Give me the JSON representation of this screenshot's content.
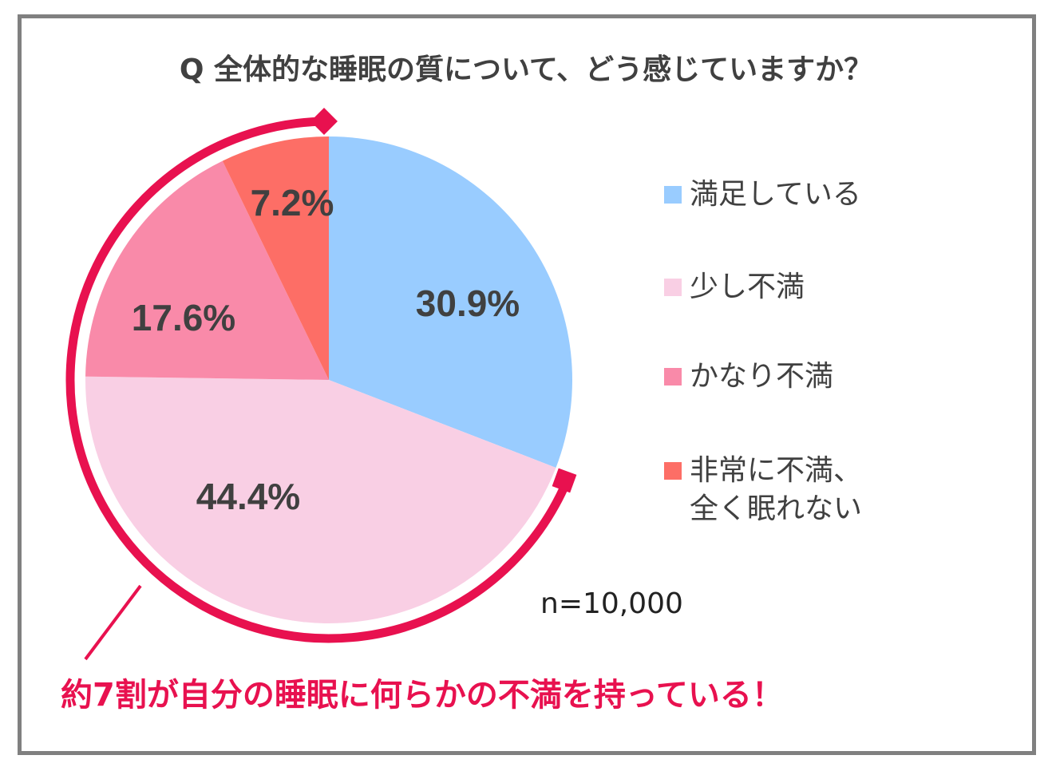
{
  "title": "Q 全体的な睡眠の質について、どう感じていますか？",
  "sample_size": "n=10,000",
  "callout": "約7割が自分の睡眠に何らかの不満を持っている！",
  "colors": {
    "satisfied": "#99ccff",
    "slightly": "#f9cfe4",
    "quite": "#f98aa9",
    "very": "#fd6e66",
    "accent": "#e8114f",
    "frame": "#808080",
    "text": "#404040"
  },
  "legend": [
    {
      "label": "満足している",
      "color": "#99ccff"
    },
    {
      "label": "少し不満",
      "color": "#f9cfe4"
    },
    {
      "label": "かなり不満",
      "color": "#f98aa9"
    },
    {
      "label_line1": "非常に不満、",
      "label_line2": "全く眠れない",
      "color": "#fd6e66"
    }
  ],
  "slice_labels": [
    "30.9%",
    "44.4%",
    "17.6%",
    "7.2%"
  ],
  "chart_data": {
    "type": "pie",
    "title": "Q 全体的な睡眠の質について、どう感じていますか？",
    "categories": [
      "満足している",
      "少し不満",
      "かなり不満",
      "非常に不満、全く眠れない"
    ],
    "values": [
      30.9,
      44.4,
      17.6,
      7.2
    ],
    "unit": "%",
    "start_angle": "12 o'clock",
    "direction": "clockwise",
    "legend_position": "right",
    "annotations": [
      "n=10,000",
      "約7割が自分の睡眠に何らかの不満を持っている！"
    ]
  }
}
